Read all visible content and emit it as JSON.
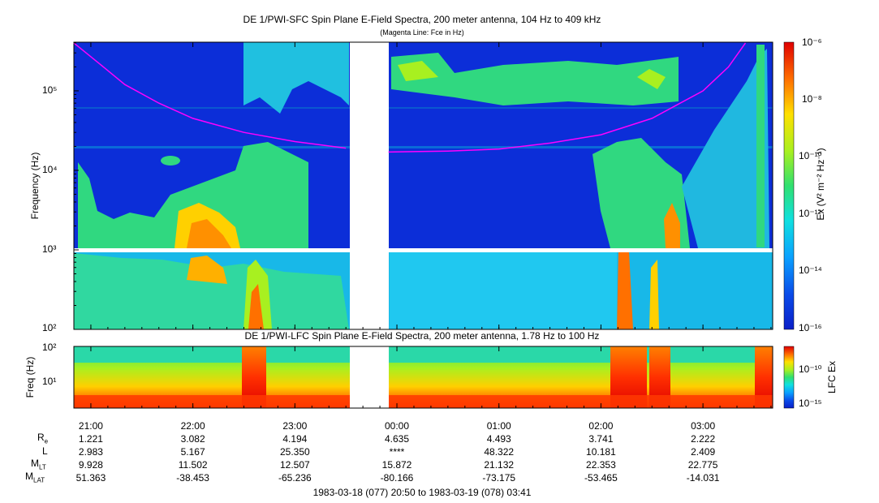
{
  "colors": {
    "spectrogram_low": "#0a2bd6",
    "spectrogram_mid": "#2ad4a0",
    "spectrogram_high": "#ff2a00",
    "fce_line": "#ff00ff",
    "background": "#ffffff"
  },
  "top_panel": {
    "title": "DE 1/PWI-SFC  Spin Plane E-Field Spectra, 200 meter antenna, 104 Hz to 409 kHz",
    "subtitle": "(Magenta Line: Fce in Hz)",
    "ylabel": "Frequency (Hz)",
    "colorbar_label": "Ex (V² m⁻² Hz⁻¹)",
    "colorbar_ticks": [
      {
        "label": "10⁻⁶"
      },
      {
        "label": "10⁻⁸"
      },
      {
        "label": "10⁻¹⁰"
      },
      {
        "label": "10⁻¹²"
      },
      {
        "label": "10⁻¹⁴"
      },
      {
        "label": "10⁻¹⁶"
      }
    ],
    "yticks": [
      {
        "label": "10⁵"
      },
      {
        "label": "10⁴"
      },
      {
        "label": "10³"
      },
      {
        "label": "10²"
      }
    ]
  },
  "bottom_panel": {
    "title": "DE 1/PWI-LFC  Spin Plane E-Field Spectra, 200 meter antenna, 1.78 Hz to 100 Hz",
    "ylabel": "Freq (Hz)",
    "colorbar_label": "LFC Ex",
    "colorbar_ticks": [
      {
        "label": "10⁻¹⁰"
      },
      {
        "label": "10⁻¹⁵"
      }
    ],
    "yticks": [
      {
        "label": "10²"
      },
      {
        "label": "10¹"
      }
    ]
  },
  "ephemeris": {
    "row_labels": [
      "Re",
      "L",
      "MLT",
      "MLAT"
    ],
    "columns": [
      {
        "time": "21:00",
        "Re": "1.221",
        "L": "2.983",
        "MLT": "9.928",
        "MLAT": "51.363"
      },
      {
        "time": "22:00",
        "Re": "3.082",
        "L": "5.167",
        "MLT": "11.502",
        "MLAT": "-38.453"
      },
      {
        "time": "23:00",
        "Re": "4.194",
        "L": "25.350",
        "MLT": "12.507",
        "MLAT": "-65.236"
      },
      {
        "time": "00:00",
        "Re": "4.635",
        "L": "****",
        "MLT": "15.872",
        "MLAT": "-80.166"
      },
      {
        "time": "01:00",
        "Re": "4.493",
        "L": "48.322",
        "MLT": "21.132",
        "MLAT": "-73.175"
      },
      {
        "time": "02:00",
        "Re": "3.741",
        "L": "10.181",
        "MLT": "22.353",
        "MLAT": "-53.465"
      },
      {
        "time": "03:00",
        "Re": "2.222",
        "L": "2.409",
        "MLT": "22.775",
        "MLAT": "-14.031"
      }
    ]
  },
  "time_range": "1983-03-18 (077) 20:50 to 1983-03-19 (078) 03:41",
  "chart_data": [
    {
      "type": "heatmap",
      "title": "DE 1/PWI-SFC  Spin Plane E-Field Spectra, 200 meter antenna, 104 Hz to 409 kHz",
      "subtitle": "(Magenta Line: Fce in Hz)",
      "xlabel": "",
      "ylabel": "Frequency (Hz)",
      "x_range": [
        "1983-03-18 20:50",
        "1983-03-19 03:41"
      ],
      "y_range": [
        100,
        409000
      ],
      "y_scale": "log",
      "x_ticks": [
        "21:00",
        "22:00",
        "23:00",
        "00:00",
        "01:00",
        "02:00",
        "03:00"
      ],
      "colorbar": {
        "label": "Ex (V² m⁻² Hz⁻¹)",
        "range": [
          1e-16,
          1e-06
        ],
        "scale": "log"
      },
      "data_gap": [
        "1983-03-18 23:32",
        "1983-03-18 23:55"
      ],
      "series": [
        {
          "name": "Fce",
          "type": "line",
          "color": "#ff00ff",
          "x": [
            "20:50",
            "21:05",
            "21:20",
            "21:40",
            "22:00",
            "22:30",
            "23:00",
            "23:30",
            "23:55",
            "00:30",
            "01:00",
            "01:30",
            "02:00",
            "02:30",
            "03:00",
            "03:15",
            "03:25"
          ],
          "y": [
            400000,
            220000,
            120000,
            70000,
            45000,
            30000,
            23000,
            19000,
            17000,
            17500,
            18500,
            22000,
            28000,
            45000,
            100000,
            200000,
            400000
          ]
        }
      ]
    },
    {
      "type": "heatmap",
      "title": "DE 1/PWI-LFC  Spin Plane E-Field Spectra, 200 meter antenna, 1.78 Hz to 100 Hz",
      "xlabel": "",
      "ylabel": "Freq (Hz)",
      "x_range": [
        "1983-03-18 20:50",
        "1983-03-19 03:41"
      ],
      "y_range": [
        1.78,
        100
      ],
      "y_scale": "log",
      "x_ticks": [
        "21:00",
        "22:00",
        "23:00",
        "00:00",
        "01:00",
        "02:00",
        "03:00"
      ],
      "colorbar": {
        "label": "LFC Ex",
        "range": [
          1e-17,
          1e-08
        ],
        "scale": "log"
      },
      "data_gap": [
        "1983-03-18 23:32",
        "1983-03-18 23:55"
      ]
    }
  ]
}
